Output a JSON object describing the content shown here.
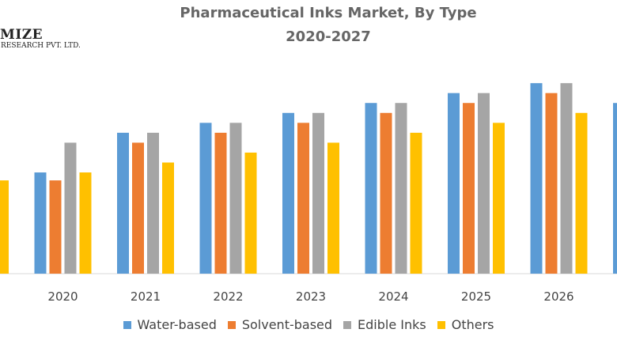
{
  "chart_data": {
    "type": "bar",
    "title": "Pharmaceutical Inks Market, By Type",
    "subtitle": "2020-2027",
    "xlabel": "",
    "ylabel": "",
    "categories": [
      "",
      "2020",
      "2021",
      "2022",
      "2023",
      "2024",
      "2025",
      "2026",
      ""
    ],
    "series": [
      {
        "name": "Water-based",
        "color": "#5B9BD5",
        "values": [
          4.4,
          5.1,
          7.1,
          7.6,
          8.1,
          8.6,
          9.1,
          9.6,
          8.6
        ]
      },
      {
        "name": "Solvent-based",
        "color": "#ED7D31",
        "values": [
          4.1,
          4.7,
          6.6,
          7.1,
          7.6,
          8.1,
          8.6,
          9.1,
          8.1
        ]
      },
      {
        "name": "Edible Inks",
        "color": "#A5A5A5",
        "values": [
          5.6,
          6.6,
          7.1,
          7.6,
          8.1,
          8.6,
          9.1,
          9.6,
          9.1
        ]
      },
      {
        "name": "Others",
        "color": "#FFC000",
        "values": [
          4.7,
          5.1,
          5.6,
          6.1,
          6.6,
          7.1,
          7.6,
          8.1,
          7.1
        ]
      }
    ],
    "ylim": [
      0,
      11
    ],
    "grid": false,
    "legend": "bottom"
  },
  "logo": {
    "line1": "MIZE",
    "line2": "RESEARCH PVT. LTD."
  }
}
